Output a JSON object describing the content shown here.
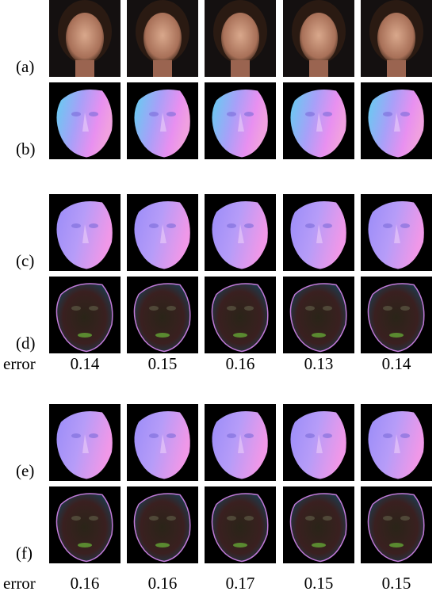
{
  "panels": [
    {
      "label": "(a)"
    },
    {
      "label": "(b)"
    },
    {
      "label": "(c)"
    },
    {
      "label": "(d)"
    },
    {
      "label": "(e)"
    },
    {
      "label": "(f)"
    }
  ],
  "error_rows": [
    {
      "label": "error",
      "values": [
        0.14,
        0.15,
        0.16,
        0.13,
        0.14
      ]
    },
    {
      "label": "error",
      "values": [
        0.16,
        0.16,
        0.17,
        0.15,
        0.15
      ]
    }
  ]
}
